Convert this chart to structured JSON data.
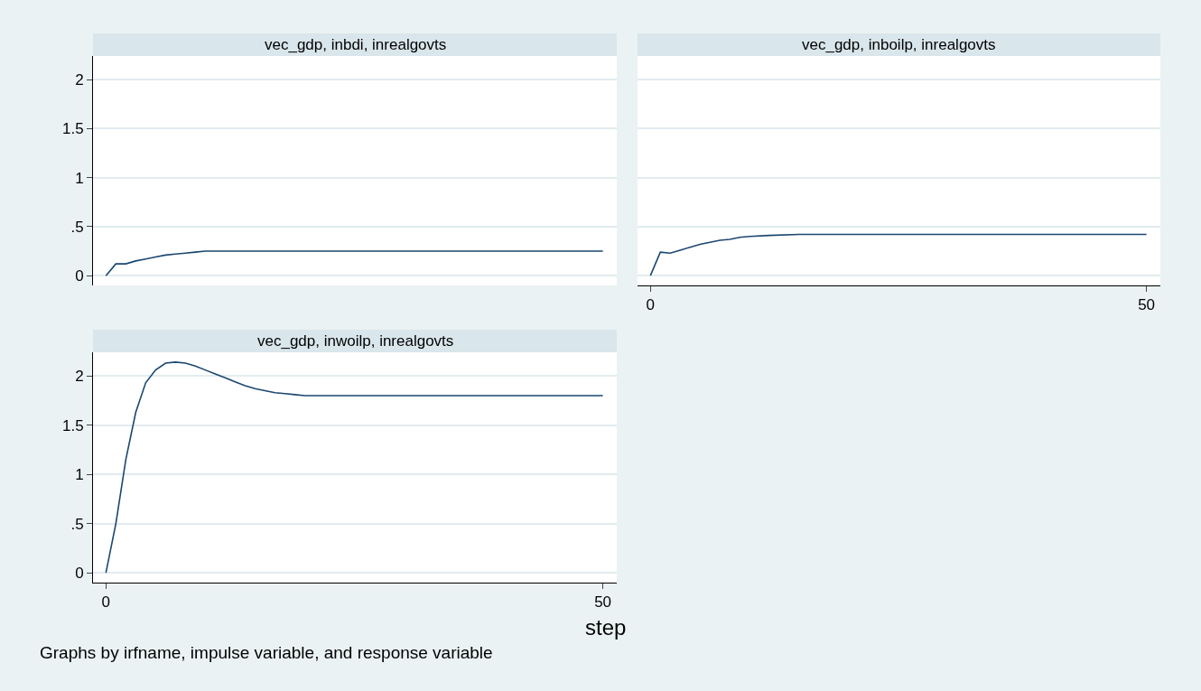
{
  "chart_data": [
    {
      "type": "line",
      "title": "vec_gdp, inbdi, inrealgovts",
      "tick_labels": "y",
      "grid": "y",
      "marker": "none",
      "line_style": "solid",
      "xlim": [
        -1.3,
        51.4
      ],
      "xticks": [
        0,
        50
      ],
      "ylim": [
        -0.1,
        2.24
      ],
      "yticks": [
        0,
        {
          "value": 0.5,
          "label": ".5"
        },
        1,
        1.5,
        2
      ],
      "series": [
        {
          "color": "#1a476f",
          "x": [
            0,
            1,
            2,
            3,
            4,
            5,
            6,
            7,
            8,
            9,
            10,
            12,
            15,
            20,
            25,
            30,
            40,
            50
          ],
          "values": [
            0,
            0.12,
            0.12,
            0.15,
            0.17,
            0.19,
            0.21,
            0.22,
            0.23,
            0.24,
            0.25,
            0.25,
            0.25,
            0.25,
            0.25,
            0.25,
            0.25,
            0.25
          ]
        }
      ]
    },
    {
      "type": "line",
      "title": "vec_gdp, inboilp, inrealgovts",
      "tick_labels": "x",
      "grid": "y",
      "marker": "none",
      "line_style": "solid",
      "xlim": [
        -1.3,
        51.4
      ],
      "xticks": [
        0,
        50
      ],
      "ylim": [
        -0.1,
        2.24
      ],
      "yticks": [
        {
          "value": 0,
          "label": null
        },
        {
          "value": 0.5,
          "label": null
        },
        {
          "value": 1,
          "label": null
        },
        {
          "value": 1.5,
          "label": null
        },
        {
          "value": 2,
          "label": null
        }
      ],
      "series": [
        {
          "color": "#1a476f",
          "x": [
            0,
            1,
            2,
            3,
            4,
            5,
            6,
            7,
            8,
            9,
            10,
            12,
            15,
            20,
            25,
            30,
            40,
            50
          ],
          "values": [
            0,
            0.24,
            0.23,
            0.26,
            0.29,
            0.32,
            0.34,
            0.36,
            0.37,
            0.39,
            0.4,
            0.41,
            0.42,
            0.42,
            0.42,
            0.42,
            0.42,
            0.42
          ]
        }
      ]
    },
    {
      "type": "line",
      "title": "vec_gdp, inwoilp, inrealgovts",
      "xlabel": "step",
      "grid": "y",
      "marker": "none",
      "line_style": "solid",
      "xlim": [
        -1.3,
        51.4
      ],
      "xticks": [
        0,
        50
      ],
      "ylim": [
        -0.1,
        2.24
      ],
      "yticks": [
        0,
        {
          "value": 0.5,
          "label": ".5"
        },
        1,
        1.5,
        2
      ],
      "annotations": [
        "Graphs by irfname, impulse variable, and response variable"
      ],
      "series": [
        {
          "color": "#1a476f",
          "x": [
            0,
            1,
            2,
            3,
            4,
            5,
            6,
            7,
            8,
            9,
            10,
            11,
            12,
            13,
            14,
            15,
            16,
            17,
            18,
            19,
            20,
            22,
            25,
            30,
            40,
            50
          ],
          "values": [
            0,
            0.5,
            1.15,
            1.63,
            1.93,
            2.06,
            2.13,
            2.14,
            2.13,
            2.1,
            2.06,
            2.02,
            1.98,
            1.94,
            1.9,
            1.87,
            1.85,
            1.83,
            1.82,
            1.81,
            1.8,
            1.8,
            1.8,
            1.8,
            1.8,
            1.8
          ]
        }
      ]
    }
  ]
}
